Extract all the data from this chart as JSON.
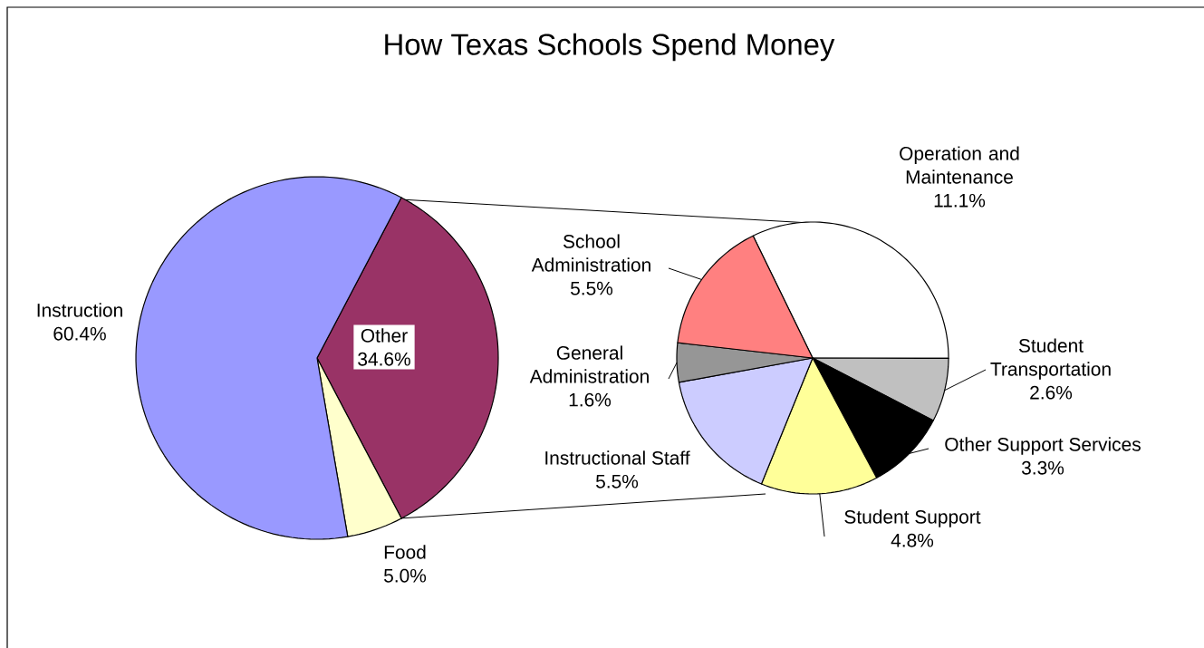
{
  "chart_data": [
    {
      "type": "pie",
      "title": "How Texas Schools Spend Money",
      "categories": [
        "Other",
        "Food",
        "Instruction"
      ],
      "values": [
        34.6,
        5.0,
        60.4
      ],
      "value_labels": [
        "34.6%",
        "5.0%",
        "60.4%"
      ],
      "colors": [
        "#993366",
        "#ffffcc",
        "#9999ff"
      ]
    },
    {
      "type": "pie",
      "categories": [
        "Operation and Maintenance",
        "Student Transportation",
        "Other Support Services",
        "Student Support",
        "Instructional Staff",
        "General Administration",
        "School Administration"
      ],
      "values": [
        11.1,
        2.6,
        3.3,
        4.8,
        5.5,
        1.6,
        5.5
      ],
      "value_labels": [
        "11.1%",
        "2.6%",
        "3.3%",
        "4.8%",
        "5.5%",
        "1.6%",
        "5.5%"
      ],
      "colors": [
        "#ffffff",
        "#c0c0c0",
        "#000000",
        "#ffff99",
        "#ccccff",
        "#969696",
        "#ff8080"
      ]
    }
  ]
}
